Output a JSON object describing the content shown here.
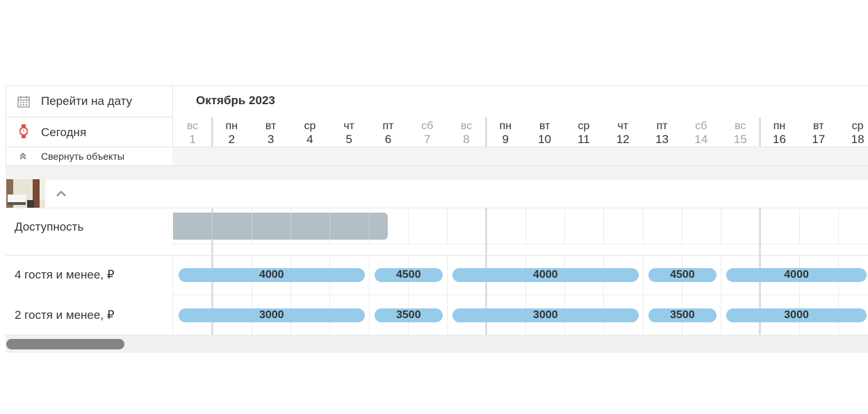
{
  "toolbar": {
    "goto_date_label": "Перейти на дату",
    "today_label": "Сегодня",
    "collapse_label": "Свернуть объекты"
  },
  "calendar": {
    "month_label": "Октябрь 2023",
    "days": [
      {
        "dow": "вс",
        "num": "1",
        "weekend": true
      },
      {
        "dow": "пн",
        "num": "2",
        "weekend": false
      },
      {
        "dow": "вт",
        "num": "3",
        "weekend": false
      },
      {
        "dow": "ср",
        "num": "4",
        "weekend": false
      },
      {
        "dow": "чт",
        "num": "5",
        "weekend": false
      },
      {
        "dow": "пт",
        "num": "6",
        "weekend": false
      },
      {
        "dow": "сб",
        "num": "7",
        "weekend": true
      },
      {
        "dow": "вс",
        "num": "8",
        "weekend": true
      },
      {
        "dow": "пн",
        "num": "9",
        "weekend": false
      },
      {
        "dow": "вт",
        "num": "10",
        "weekend": false
      },
      {
        "dow": "ср",
        "num": "11",
        "weekend": false
      },
      {
        "dow": "чт",
        "num": "12",
        "weekend": false
      },
      {
        "dow": "пт",
        "num": "13",
        "weekend": false
      },
      {
        "dow": "сб",
        "num": "14",
        "weekend": true
      },
      {
        "dow": "вс",
        "num": "15",
        "weekend": true
      },
      {
        "dow": "пн",
        "num": "16",
        "weekend": false
      },
      {
        "dow": "вт",
        "num": "17",
        "weekend": false
      },
      {
        "dow": "ср",
        "num": "18",
        "weekend": false
      }
    ]
  },
  "object": {
    "collapse_icon": "chevron-up-icon"
  },
  "rows": {
    "availability_label": "Доступность",
    "availability_blocked_days": [
      1,
      2,
      3,
      4,
      5,
      6
    ],
    "rates": [
      {
        "label": "4 гостя и менее, ₽",
        "segments": [
          {
            "from": 1,
            "to": 5,
            "price": "4000"
          },
          {
            "from": 6,
            "to": 7,
            "price": "4500"
          },
          {
            "from": 8,
            "to": 12,
            "price": "4000"
          },
          {
            "from": 13,
            "to": 14,
            "price": "4500"
          },
          {
            "from": 15,
            "to": 18,
            "price": "4000"
          }
        ]
      },
      {
        "label": "2 гостя и менее, ₽",
        "segments": [
          {
            "from": 1,
            "to": 5,
            "price": "3000"
          },
          {
            "from": 6,
            "to": 7,
            "price": "3500"
          },
          {
            "from": 8,
            "to": 12,
            "price": "3000"
          },
          {
            "from": 13,
            "to": 14,
            "price": "3500"
          },
          {
            "from": 15,
            "to": 18,
            "price": "3000"
          }
        ]
      }
    ]
  },
  "colors": {
    "rate_pill": "#96cbea",
    "blocked": "#b4bfc5",
    "weekend_text": "#a2a2a2"
  }
}
